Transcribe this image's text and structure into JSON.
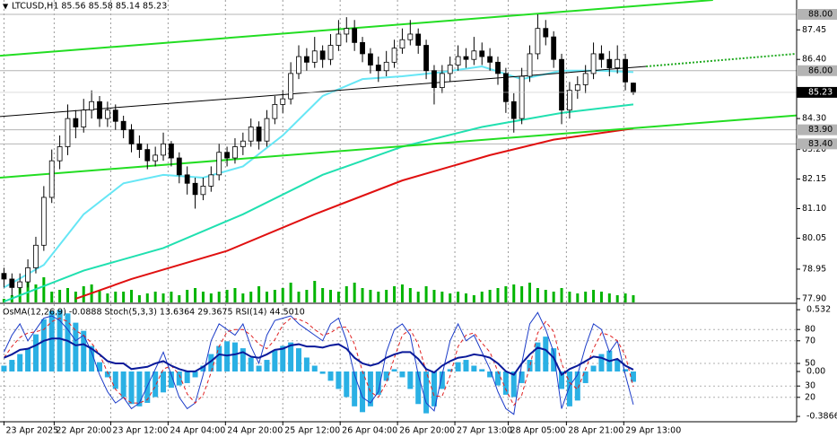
{
  "chart_data": [
    {
      "type": "candlestick",
      "title": "LTCUSD,H1  85.56 85.58 85.14 85.23",
      "xlim": [
        -0.5,
        99.5
      ],
      "ylim": [
        77.77,
        88.51
      ],
      "xticks": [
        {
          "value": 0,
          "label": "23 Apr 2025"
        },
        {
          "value": 6.3,
          "label": "22 Apr 20:00"
        },
        {
          "value": 13.4,
          "label": "23 Apr 12:00"
        },
        {
          "value": 20.6,
          "label": "24 Apr 04:00"
        },
        {
          "value": 27.8,
          "label": "24 Apr 20:00"
        },
        {
          "value": 35,
          "label": "25 Apr 12:00"
        },
        {
          "value": 42.2,
          "label": "26 Apr 04:00"
        },
        {
          "value": 49.4,
          "label": "26 Apr 20:00"
        },
        {
          "value": 56.6,
          "label": "27 Apr 13:00"
        },
        {
          "value": 63.3,
          "label": "28 Apr 05:00"
        },
        {
          "value": 70.6,
          "label": "28 Apr 21:00"
        },
        {
          "value": 77.8,
          "label": "29 Apr 13:00"
        }
      ],
      "yticks": [
        87.45,
        {
          "value": 86.4,
          "label": "86.40"
        },
        {
          "value": 84.3,
          "label": "84.30"
        },
        {
          "value": 83.2,
          "label": "83.20"
        },
        82.15,
        {
          "value": 81.1,
          "label": "81.10"
        },
        80.05,
        78.95,
        {
          "value": 77.9,
          "label": "77.90"
        }
      ],
      "levels": [
        {
          "value": 88,
          "label": "88.00"
        },
        {
          "value": 86,
          "label": "86.00"
        },
        {
          "value": 83.9,
          "label": "83.90"
        },
        {
          "value": 83.4,
          "label": "83.40"
        }
      ],
      "level_color": "#b4b4b4",
      "last_price": 85.23,
      "up_color": "#ffffff",
      "down_color": "#000000",
      "wick_color": "#000000",
      "candles": [
        [
          78.8,
          79.0,
          78.3,
          78.6
        ],
        [
          78.6,
          78.8,
          78.0,
          78.3
        ],
        [
          78.3,
          78.8,
          78.1,
          78.5
        ],
        [
          78.5,
          79.3,
          78.3,
          79.0
        ],
        [
          79.0,
          80.1,
          78.8,
          79.8
        ],
        [
          79.8,
          81.9,
          79.6,
          81.5
        ],
        [
          81.5,
          83.2,
          81.3,
          82.8
        ],
        [
          82.8,
          83.7,
          82.5,
          83.3
        ],
        [
          83.3,
          84.8,
          83.0,
          84.3
        ],
        [
          84.3,
          84.6,
          83.6,
          84.0
        ],
        [
          84.0,
          85.0,
          83.8,
          84.6
        ],
        [
          84.6,
          85.3,
          84.3,
          84.9
        ],
        [
          84.9,
          85.1,
          84.0,
          84.3
        ],
        [
          84.3,
          84.9,
          84.0,
          84.6
        ],
        [
          84.6,
          84.8,
          83.9,
          84.2
        ],
        [
          84.2,
          84.4,
          83.6,
          83.9
        ],
        [
          83.9,
          84.1,
          83.1,
          83.4
        ],
        [
          83.4,
          83.7,
          82.9,
          83.2
        ],
        [
          83.2,
          83.4,
          82.5,
          82.8
        ],
        [
          82.8,
          83.3,
          82.6,
          83.0
        ],
        [
          83.0,
          83.8,
          82.8,
          83.4
        ],
        [
          83.4,
          83.5,
          82.6,
          82.9
        ],
        [
          82.9,
          83.1,
          82.0,
          82.3
        ],
        [
          82.3,
          82.6,
          81.6,
          82.0
        ],
        [
          82.0,
          82.2,
          81.1,
          81.6
        ],
        [
          81.6,
          82.2,
          81.4,
          81.9
        ],
        [
          81.9,
          82.6,
          81.7,
          82.3
        ],
        [
          82.3,
          83.4,
          82.1,
          83.1
        ],
        [
          83.1,
          83.3,
          82.6,
          82.9
        ],
        [
          82.9,
          83.6,
          82.7,
          83.3
        ],
        [
          83.3,
          83.8,
          83.0,
          83.5
        ],
        [
          83.5,
          84.3,
          83.3,
          84.0
        ],
        [
          84.0,
          84.2,
          83.2,
          83.5
        ],
        [
          83.5,
          84.6,
          83.3,
          84.3
        ],
        [
          84.3,
          85.1,
          84.1,
          84.8
        ],
        [
          84.8,
          85.3,
          84.5,
          85.0
        ],
        [
          85.0,
          86.3,
          84.8,
          85.9
        ],
        [
          85.9,
          86.9,
          85.7,
          86.5
        ],
        [
          86.5,
          86.8,
          86.0,
          86.3
        ],
        [
          86.3,
          87.2,
          86.1,
          86.7
        ],
        [
          86.7,
          86.9,
          86.1,
          86.4
        ],
        [
          86.4,
          87.3,
          86.2,
          86.9
        ],
        [
          86.9,
          87.8,
          86.7,
          87.3
        ],
        [
          87.3,
          87.9,
          87.0,
          87.5
        ],
        [
          87.5,
          87.8,
          86.7,
          87.0
        ],
        [
          87.0,
          87.2,
          86.3,
          86.6
        ],
        [
          86.6,
          86.8,
          85.9,
          86.2
        ],
        [
          86.2,
          86.5,
          85.6,
          86.0
        ],
        [
          86.0,
          86.7,
          85.8,
          86.3
        ],
        [
          86.3,
          87.1,
          86.1,
          86.8
        ],
        [
          86.8,
          87.5,
          86.6,
          87.1
        ],
        [
          87.1,
          87.8,
          86.9,
          87.3
        ],
        [
          87.3,
          87.5,
          86.6,
          86.9
        ],
        [
          86.9,
          87.1,
          85.7,
          86.0
        ],
        [
          86.0,
          86.2,
          84.8,
          85.4
        ],
        [
          85.4,
          86.2,
          85.2,
          85.9
        ],
        [
          85.9,
          86.5,
          85.6,
          86.2
        ],
        [
          86.2,
          86.9,
          86.0,
          86.5
        ],
        [
          86.5,
          86.8,
          86.1,
          86.4
        ],
        [
          86.4,
          87.2,
          86.2,
          86.7
        ],
        [
          86.7,
          87.0,
          86.2,
          86.5
        ],
        [
          86.5,
          86.8,
          86.0,
          86.3
        ],
        [
          86.3,
          86.5,
          85.5,
          85.9
        ],
        [
          85.9,
          86.1,
          84.5,
          84.9
        ],
        [
          84.9,
          85.2,
          83.8,
          84.3
        ],
        [
          84.3,
          86.1,
          84.1,
          85.8
        ],
        [
          85.8,
          86.9,
          85.6,
          86.6
        ],
        [
          86.6,
          88.0,
          86.4,
          87.5
        ],
        [
          87.5,
          87.8,
          86.9,
          87.2
        ],
        [
          87.2,
          87.4,
          86.1,
          86.4
        ],
        [
          86.4,
          86.6,
          84.1,
          84.6
        ],
        [
          84.6,
          85.6,
          84.3,
          85.3
        ],
        [
          85.3,
          85.8,
          85.0,
          85.5
        ],
        [
          85.5,
          86.2,
          85.2,
          85.9
        ],
        [
          85.9,
          87.0,
          85.7,
          86.6
        ],
        [
          86.6,
          86.9,
          86.1,
          86.4
        ],
        [
          86.4,
          86.7,
          85.8,
          86.1
        ],
        [
          86.1,
          86.9,
          85.9,
          86.4
        ],
        [
          86.4,
          86.6,
          85.3,
          85.6
        ],
        [
          85.56,
          85.58,
          85.14,
          85.23
        ]
      ],
      "volume": {
        "color": "#00b400",
        "values": [
          10,
          20,
          40,
          60,
          50,
          70,
          30,
          35,
          40,
          30,
          45,
          50,
          35,
          25,
          30,
          30,
          35,
          20,
          25,
          30,
          25,
          30,
          20,
          35,
          40,
          30,
          25,
          30,
          35,
          40,
          25,
          30,
          45,
          30,
          35,
          40,
          55,
          30,
          35,
          60,
          40,
          35,
          30,
          45,
          55,
          40,
          35,
          30,
          35,
          45,
          50,
          40,
          30,
          45,
          35,
          30,
          25,
          30,
          25,
          20,
          30,
          35,
          40,
          45,
          50,
          45,
          55,
          40,
          35,
          30,
          40,
          30,
          25,
          30,
          35,
          30,
          25,
          20,
          25,
          20
        ]
      },
      "moving_averages": [
        {
          "color": "#66e6f5",
          "x": [
            0,
            5,
            10,
            15,
            20,
            25,
            30,
            35,
            40,
            45,
            50,
            55,
            60,
            65,
            70,
            75,
            79
          ],
          "values": [
            78.3,
            79.1,
            80.9,
            82.0,
            82.3,
            82.2,
            82.6,
            83.7,
            85.1,
            85.7,
            85.8,
            85.95,
            86.15,
            85.7,
            86.0,
            86.0,
            85.95
          ]
        },
        {
          "color": "#20e0b0",
          "x": [
            0,
            10,
            20,
            30,
            40,
            50,
            60,
            70,
            79
          ],
          "values": [
            77.8,
            78.9,
            79.7,
            80.9,
            82.3,
            83.3,
            84.0,
            84.5,
            84.8
          ]
        },
        {
          "color": "#e01010",
          "x": [
            9,
            16,
            28,
            39,
            50,
            61,
            69,
            79
          ],
          "values": [
            77.9,
            78.6,
            79.6,
            80.9,
            82.1,
            83.0,
            83.55,
            83.95
          ]
        }
      ],
      "trendlines": [
        {
          "color": "#22dd22",
          "style": "solid",
          "x": [
            -0.5,
            89.0
          ],
          "values": [
            86.53,
            88.51
          ]
        },
        {
          "color": "#22dd22",
          "style": "solid",
          "x": [
            -0.5,
            100.3
          ],
          "values": [
            82.2,
            84.43
          ]
        },
        {
          "color": "#000000",
          "style": "solid",
          "x": [
            -0.5,
            80.6
          ],
          "values": [
            84.37,
            86.15
          ]
        },
        {
          "color": "#22aa22",
          "style": "dotted",
          "x": [
            80.6,
            99.5
          ],
          "values": [
            86.15,
            86.6
          ]
        }
      ]
    },
    {
      "type": "oscillator",
      "header": "OsMA(12,26,9) -0.0888  Stoch(5,3,3) 13.6364 29.3675  RSI(14) 44.5010",
      "ylim": [
        0,
        100
      ],
      "yticks": [
        80,
        70,
        50,
        30,
        20
      ],
      "y2lim": [
        -0.417,
        0.556
      ],
      "y2ticks": [
        0.532,
        {
          "value": 0,
          "label": "0.00"
        },
        -0.3866
      ],
      "series": [
        {
          "type": "bar",
          "axis": "y2",
          "color": "#2ab0e4",
          "values": [
            0.05,
            0.1,
            0.15,
            0.2,
            0.32,
            0.45,
            0.52,
            0.53,
            0.5,
            0.42,
            0.35,
            0.22,
            0.08,
            -0.05,
            -0.15,
            -0.22,
            -0.28,
            -0.3,
            -0.27,
            -0.22,
            -0.18,
            -0.14,
            -0.12,
            -0.1,
            -0.05,
            0.05,
            0.15,
            0.22,
            0.26,
            0.25,
            0.2,
            0.12,
            0.05,
            0.1,
            0.18,
            0.22,
            0.25,
            0.2,
            0.12,
            0.05,
            -0.02,
            -0.08,
            -0.15,
            -0.22,
            -0.3,
            -0.35,
            -0.3,
            -0.2,
            -0.08,
            0.02,
            -0.05,
            -0.15,
            -0.28,
            -0.36,
            -0.3,
            -0.15,
            0.02,
            0.08,
            0.1,
            0.05,
            0.02,
            -0.05,
            -0.12,
            -0.2,
            -0.22,
            -0.1,
            0.1,
            0.25,
            0.3,
            0.2,
            -0.15,
            -0.3,
            -0.25,
            -0.1,
            0.05,
            0.15,
            0.18,
            0.1,
            0.02,
            -0.0888
          ]
        },
        {
          "type": "line",
          "color": "#1c3cc8",
          "width": 1,
          "style": "solid",
          "values": [
            60,
            75,
            85,
            70,
            80,
            90,
            92,
            88,
            80,
            70,
            75,
            60,
            40,
            25,
            15,
            20,
            10,
            15,
            30,
            45,
            60,
            40,
            20,
            10,
            15,
            40,
            70,
            85,
            80,
            75,
            85,
            65,
            50,
            75,
            88,
            90,
            92,
            85,
            80,
            75,
            70,
            85,
            90,
            70,
            40,
            20,
            15,
            25,
            60,
            80,
            85,
            75,
            40,
            15,
            8,
            40,
            70,
            85,
            70,
            75,
            60,
            45,
            25,
            10,
            5,
            50,
            85,
            95,
            80,
            60,
            10,
            30,
            40,
            65,
            85,
            80,
            60,
            70,
            40,
            13.6364
          ]
        },
        {
          "type": "line",
          "color": "#e02020",
          "width": 1,
          "style": "dashed",
          "values": [
            55,
            65,
            73,
            77,
            78,
            80,
            87,
            90,
            87,
            79,
            75,
            68,
            58,
            42,
            27,
            20,
            15,
            15,
            18,
            30,
            45,
            48,
            40,
            23,
            15,
            22,
            42,
            65,
            78,
            80,
            80,
            75,
            67,
            63,
            71,
            84,
            90,
            89,
            86,
            80,
            75,
            77,
            82,
            82,
            67,
            43,
            25,
            20,
            33,
            55,
            75,
            80,
            67,
            43,
            21,
            21,
            39,
            65,
            75,
            77,
            68,
            60,
            43,
            27,
            13,
            22,
            47,
            77,
            87,
            78,
            50,
            33,
            27,
            45,
            63,
            77,
            75,
            70,
            57,
            29.3675
          ]
        },
        {
          "type": "line",
          "color": "#0a1a9a",
          "width": 2,
          "style": "solid",
          "values": [
            55,
            58,
            62,
            63,
            66,
            70,
            72,
            72,
            70,
            66,
            67,
            63,
            58,
            52,
            50,
            50,
            45,
            46,
            47,
            50,
            52,
            48,
            45,
            43,
            43,
            47,
            52,
            58,
            57,
            58,
            60,
            56,
            55,
            58,
            62,
            63,
            66,
            67,
            65,
            65,
            64,
            66,
            67,
            63,
            55,
            50,
            48,
            50,
            55,
            58,
            60,
            60,
            54,
            45,
            42,
            48,
            52,
            55,
            56,
            58,
            57,
            55,
            50,
            43,
            40,
            50,
            58,
            64,
            62,
            55,
            40,
            45,
            48,
            52,
            56,
            55,
            52,
            54,
            48,
            44.501
          ]
        }
      ]
    }
  ]
}
